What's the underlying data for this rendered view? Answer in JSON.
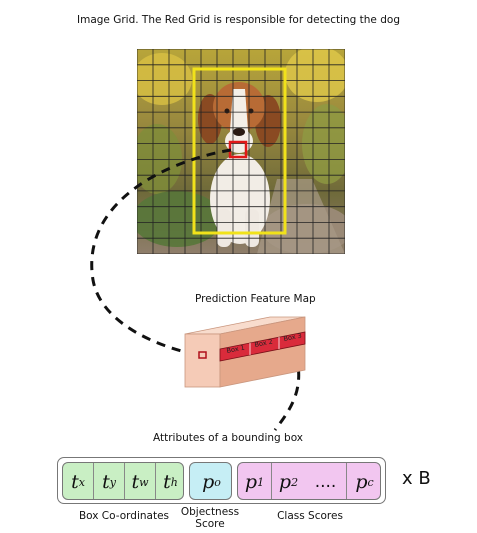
{
  "top_caption": "Image Grid. The Red Grid is responsible for detecting the dog",
  "feature_map": {
    "title": "Prediction Feature Map",
    "boxes": [
      "Box 1",
      "Box 2",
      "Box 3"
    ]
  },
  "attributes": {
    "title": "Attributes of a bounding box",
    "coords": [
      {
        "base": "t",
        "sub": "x"
      },
      {
        "base": "t",
        "sub": "y"
      },
      {
        "base": "t",
        "sub": "w"
      },
      {
        "base": "t",
        "sub": "h"
      }
    ],
    "objectness": {
      "base": "p",
      "sub": "o"
    },
    "classes": [
      {
        "base": "p",
        "sub": "1"
      },
      {
        "base": "p",
        "sub": "2"
      },
      {
        "base": "....",
        "sub": ""
      },
      {
        "base": "p",
        "sub": "c"
      }
    ],
    "multiplier": "x B",
    "label_coords": "Box Co-ordinates",
    "label_objectness_1": "Objectness",
    "label_objectness_2": "Score",
    "label_classes": "Class Scores"
  },
  "colors": {
    "grid_line": "#222222",
    "yellow_box": "#f1e21a",
    "red_cell": "#e01818",
    "coords_fill": "#c9efc4",
    "objectness_fill": "#c6eef5",
    "classes_fill": "#f2c6f0",
    "feature_map_front": "#f5cbb7",
    "feature_map_side": "#e6a98c",
    "box_strip": "#d92b3b"
  }
}
